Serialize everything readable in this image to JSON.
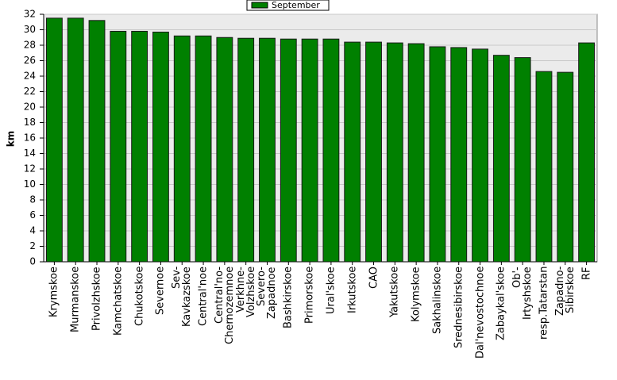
{
  "chart_data": {
    "type": "bar",
    "y_label": "km",
    "categories": [
      "Krymskoe",
      "Murmanskoe",
      "Privolzhskoe",
      "Kamchatskoe",
      "Chukotskoe",
      "Severnoe",
      "Sev-\nKavkazskoe",
      "Central'noe",
      "Central'no-\nChernozemnoe",
      "Verkhne-\nVolzhskoe",
      "Severo-\nZapadnoe",
      "Bashkirskoe",
      "Primorskoe",
      "Ural'skoe",
      "Irkutskoe",
      "CAO",
      "Yakutskoe",
      "Kolymskoe",
      "Sakhalinskoe",
      "Srednesibirskoe",
      "Dal'nevostochnoe",
      "Zabaykal'skoe",
      "Ob'-\nIrtyshskoe",
      "resp.Tatarstan",
      "Zapadno-\nSibirskoe",
      "RF"
    ],
    "series": [
      {
        "name": "September",
        "color": "#008000",
        "values": [
          31.5,
          31.5,
          31.2,
          29.8,
          29.8,
          29.7,
          29.2,
          29.2,
          29.0,
          28.9,
          28.9,
          28.8,
          28.8,
          28.8,
          28.4,
          28.4,
          28.3,
          28.2,
          27.8,
          27.7,
          27.5,
          26.7,
          26.4,
          24.6,
          24.5,
          28.3
        ]
      }
    ],
    "ylim": [
      0,
      32
    ],
    "yticks": [
      0,
      2,
      4,
      6,
      8,
      10,
      12,
      14,
      16,
      18,
      20,
      22,
      24,
      26,
      28,
      30,
      32
    ],
    "grid": true,
    "legend": "top"
  }
}
